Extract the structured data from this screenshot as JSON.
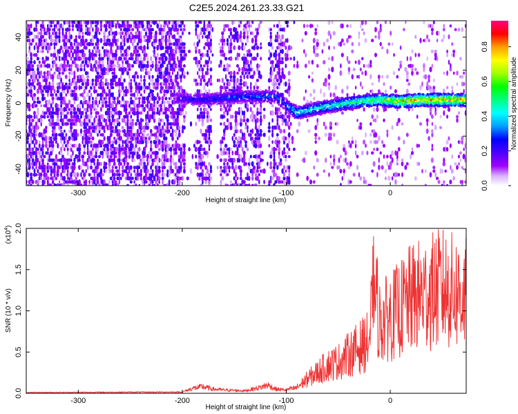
{
  "title": "C2E5.2024.261.23.33.G21",
  "chart_data": [
    {
      "type": "heatmap",
      "xlabel": "Height of straight line (km)",
      "ylabel": "Frequency (Hz)",
      "xlim": [
        -350,
        73
      ],
      "ylim": [
        -50,
        50
      ],
      "xticks": [
        -300,
        -200,
        -100,
        0
      ],
      "yticks": [
        -40,
        -20,
        0,
        20,
        40
      ],
      "colorbar": {
        "label": "Normalized spectral amplitude",
        "range": [
          0,
          0.95
        ],
        "ticks": [
          0.0,
          0.2,
          0.4,
          0.6,
          0.8
        ],
        "colormap": [
          "#ffffff",
          "#a000ff",
          "#4b00ff",
          "#0000ff",
          "#00a0ff",
          "#00ffff",
          "#00ff80",
          "#00ff00",
          "#a0ff00",
          "#ffff00",
          "#ffa000",
          "#ff0000",
          "#ff0080"
        ]
      },
      "noise_gaps_km": [
        [
          -197,
          -188
        ],
        [
          -172,
          -163
        ],
        [
          -124,
          -117
        ],
        [
          -96,
          -75
        ]
      ],
      "signal_trace": [
        {
          "x": -205,
          "y": 3,
          "amp": 0.25
        },
        {
          "x": -180,
          "y": 2,
          "amp": 0.3
        },
        {
          "x": -140,
          "y": 4,
          "amp": 0.35
        },
        {
          "x": -110,
          "y": 4,
          "amp": 0.35
        },
        {
          "x": -90,
          "y": -6,
          "amp": 0.5
        },
        {
          "x": -70,
          "y": -3,
          "amp": 0.5
        },
        {
          "x": -50,
          "y": -1,
          "amp": 0.55
        },
        {
          "x": -30,
          "y": 1,
          "amp": 0.6
        },
        {
          "x": -10,
          "y": 2,
          "amp": 0.7
        },
        {
          "x": 10,
          "y": 1,
          "amp": 0.85
        },
        {
          "x": 30,
          "y": 2,
          "amp": 0.9
        },
        {
          "x": 73,
          "y": 2,
          "amp": 0.9
        }
      ]
    },
    {
      "type": "line",
      "xlabel": "Height of straight line (km)",
      "ylabel": "SNR (10 * v/v)",
      "yscale_label": "(x10",
      "yscale_exp": "4",
      "xlim": [
        -350,
        73
      ],
      "ylim": [
        0,
        2.0
      ],
      "xticks": [
        -300,
        -200,
        -100,
        0
      ],
      "yticks": [
        0.0,
        0.5,
        1.0,
        1.5,
        2.0
      ],
      "color": "#ee3333",
      "series": [
        {
          "x": [
            -350,
            -200,
            -190,
            -180,
            -170,
            -160,
            -140,
            -125,
            -118,
            -110,
            -100,
            -90,
            -80,
            -70,
            -60,
            -50,
            -40,
            -30,
            -20,
            -16,
            -10,
            0,
            10,
            20,
            30,
            40,
            50,
            60,
            73
          ],
          "y": [
            0.01,
            0.015,
            0.06,
            0.08,
            0.05,
            0.04,
            0.03,
            0.07,
            0.1,
            0.05,
            0.04,
            0.08,
            0.2,
            0.3,
            0.4,
            0.45,
            0.55,
            0.65,
            0.75,
            1.6,
            1.0,
            1.1,
            1.2,
            1.35,
            1.4,
            1.45,
            1.5,
            1.45,
            1.4
          ]
        }
      ]
    }
  ]
}
